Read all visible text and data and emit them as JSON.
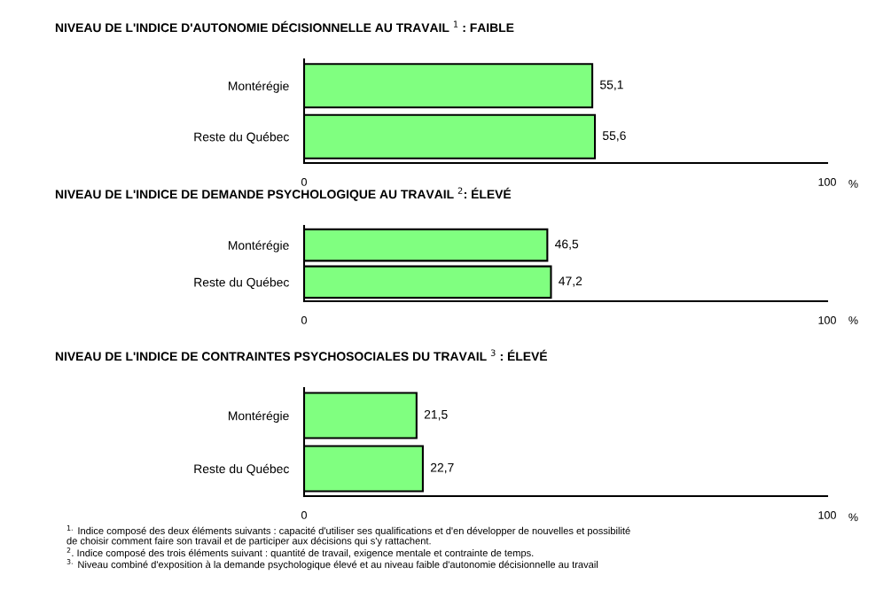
{
  "chart_data": [
    {
      "type": "bar",
      "orientation": "horizontal",
      "title": "NIVEAU DE L'INDICE D'AUTONOMIE DÉCISIONNELLE AU TRAVAIL $^{1}$ : FAIBLE",
      "categories": [
        "Montérégie",
        "Reste du Québec"
      ],
      "values": [
        55.1,
        55.6
      ],
      "value_labels": [
        "55,1",
        "55,6"
      ],
      "color": "#80ff80",
      "xlim": [
        0,
        100
      ],
      "xticks": [
        0,
        100
      ],
      "xlabel": "%",
      "grid": false,
      "legend": false
    },
    {
      "type": "bar",
      "orientation": "horizontal",
      "title": "NIVEAU DE L'INDICE DE DEMANDE PSYCHOLOGIQUE AU TRAVAIL $^{2}$: ÉLEVÉ",
      "categories": [
        "Montérégie",
        "Reste du Québec"
      ],
      "values": [
        46.5,
        47.2
      ],
      "value_labels": [
        "46,5",
        "47,2"
      ],
      "color": "#80ff80",
      "xlim": [
        0,
        100
      ],
      "xticks": [
        0,
        100
      ],
      "xlabel": "%",
      "grid": false,
      "legend": false
    },
    {
      "type": "bar",
      "orientation": "horizontal",
      "title": "NIVEAU DE L'INDICE DE CONTRAINTES PSYCHOSOCIALES DU TRAVAIL $^{3}$ : ÉLEVÉ",
      "categories": [
        "Montérégie",
        "Reste du Québec"
      ],
      "values": [
        21.5,
        22.7
      ],
      "value_labels": [
        "21,5",
        "22,7"
      ],
      "color": "#80ff80",
      "xlim": [
        0,
        100
      ],
      "xticks": [
        0,
        100
      ],
      "xlabel": "%",
      "grid": false,
      "legend": false,
      "annotations": [
        "$^{1.}$ Indice composé des deux éléments suivants : capacité d'utiliser ses qualifications et d'en développer de nouvelles et possibilité\nde choisir comment faire son travail et de participer aux décisions qui s'y rattachent.",
        "$^{2}$. Indice composé des trois éléments suivant : quantité de travail, exigence mentale et contrainte de temps.",
        "$^{3.}$ Niveau combiné d'exposition à la demande psychologique élevé et au niveau faible d'autonomie décisionnelle au travail"
      ]
    }
  ]
}
